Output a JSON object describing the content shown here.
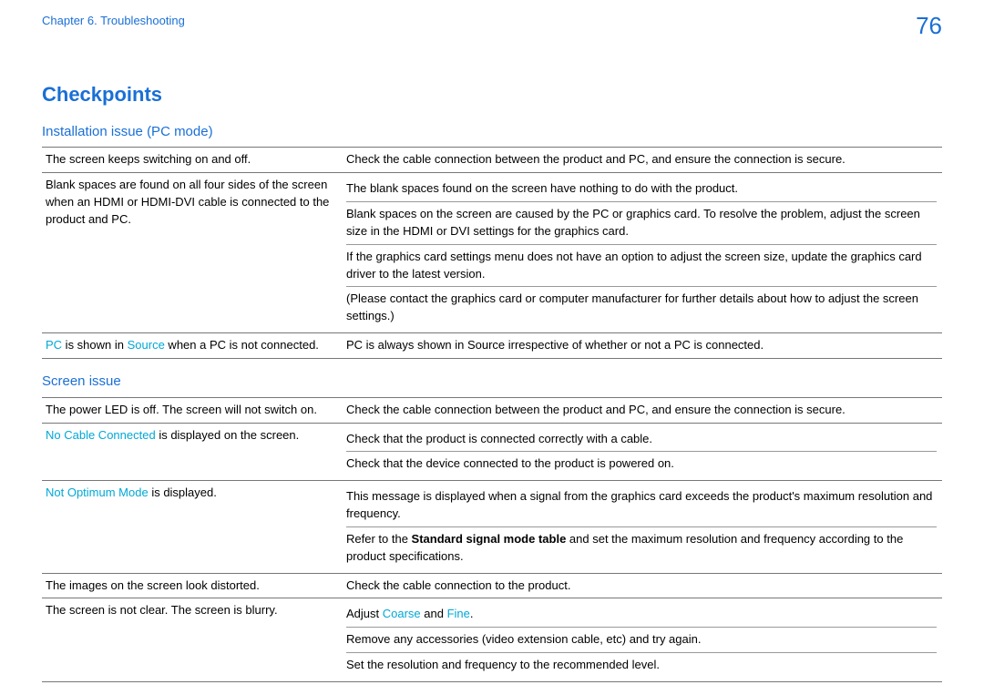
{
  "header": {
    "chapter": "Chapter 6. Troubleshooting",
    "page_number": "76"
  },
  "main_heading": "Checkpoints",
  "colors": {
    "brand_blue": "#1a6fd6",
    "highlight_cyan": "#00a8d6",
    "border": "#777777",
    "text": "#000000",
    "background": "#ffffff"
  },
  "sections": [
    {
      "heading": "Installation issue (PC mode)",
      "rows": [
        {
          "left_plain": "The screen keeps switching on and off.",
          "right_cells": [
            "Check the cable connection between the product and PC, and ensure the connection is secure."
          ]
        },
        {
          "left_plain": "Blank spaces are found on all four sides of the screen when an HDMI or HDMI-DVI cable is connected to the product and PC.",
          "right_cells": [
            "The blank spaces found on the screen have nothing to do with the product.",
            "Blank spaces on the screen are caused by the PC or graphics card. To resolve the problem, adjust the screen size in the HDMI or DVI settings for the graphics card.",
            "If the graphics card settings menu does not have an option to adjust the screen size, update the graphics card driver to the latest version.",
            "(Please contact the graphics card or computer manufacturer for further details about how to adjust the screen settings.)"
          ]
        },
        {
          "left_parts": [
            {
              "t": "PC",
              "hl": true
            },
            {
              "t": " is shown in "
            },
            {
              "t": "Source",
              "hl": true
            },
            {
              "t": " when a PC is not connected."
            }
          ],
          "right_cells": [
            "PC is always shown in Source irrespective of whether or not a PC is connected."
          ]
        }
      ]
    },
    {
      "heading": "Screen issue",
      "rows": [
        {
          "left_plain": "The power LED is off. The screen will not switch on.",
          "right_cells": [
            "Check the cable connection between the product and PC, and ensure the connection is secure."
          ]
        },
        {
          "left_parts": [
            {
              "t": "No Cable Connected",
              "hl": true
            },
            {
              "t": " is displayed on the screen."
            }
          ],
          "right_cells": [
            "Check that the product is connected correctly with a cable.",
            "Check that the device connected to the product is powered on."
          ]
        },
        {
          "left_parts": [
            {
              "t": "Not Optimum Mode",
              "hl": true
            },
            {
              "t": " is displayed."
            }
          ],
          "right_rich": [
            [
              {
                "t": "This message is displayed when a signal from the graphics card exceeds the product's maximum resolution and frequency."
              }
            ],
            [
              {
                "t": "Refer to the "
              },
              {
                "t": "Standard signal mode table",
                "bold": true
              },
              {
                "t": " and set the maximum resolution and frequency according to the product specifications."
              }
            ]
          ]
        },
        {
          "left_plain": "The images on the screen look distorted.",
          "right_cells": [
            "Check the cable connection to the product."
          ]
        },
        {
          "left_plain": "The screen is not clear. The screen is blurry.",
          "right_rich": [
            [
              {
                "t": "Adjust "
              },
              {
                "t": "Coarse",
                "hl": true
              },
              {
                "t": " and "
              },
              {
                "t": "Fine",
                "hl": true
              },
              {
                "t": "."
              }
            ],
            [
              {
                "t": "Remove any accessories (video extension cable, etc) and try again."
              }
            ],
            [
              {
                "t": "Set the resolution and frequency to the recommended level."
              }
            ]
          ]
        }
      ]
    }
  ]
}
